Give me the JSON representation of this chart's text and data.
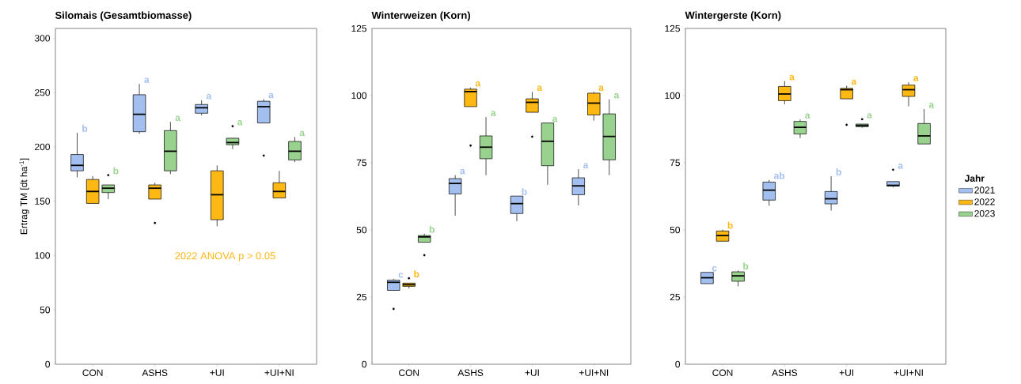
{
  "chart_data": [
    {
      "type": "box",
      "title": "Silomais (Gesamtbiomasse)",
      "ylabel": "Ertrag TM [dt ha$^{-1}$]",
      "categories": [
        "CON",
        "ASHS",
        "+UI",
        "+UI+NI"
      ],
      "ylim": [
        0,
        309
      ],
      "yticks": [
        0,
        50,
        100,
        150,
        200,
        250,
        300
      ],
      "grid": false,
      "annotations": [
        "2022 ANOVA p > 0.05"
      ],
      "series": [
        {
          "color": "#a3bff0",
          "value_labels": [
            "b",
            "a",
            "a",
            "a"
          ],
          "boxes": [
            {
              "low": 172,
              "q1": 178,
              "median": 183,
              "q3": 193,
              "high": 213
            },
            {
              "low": 212,
              "q1": 214,
              "median": 230,
              "q3": 248,
              "high": 258
            },
            {
              "low": 229,
              "q1": 231,
              "median": 236,
              "q3": 239,
              "high": 243
            },
            {
              "low": 222,
              "q1": 222,
              "median": 237,
              "q3": 242,
              "high": 244,
              "outliers": [
                192
              ]
            }
          ]
        },
        {
          "color": "#fdb813",
          "value_labels": [
            null,
            null,
            null,
            null
          ],
          "boxes": [
            {
              "low": 148,
              "q1": 148,
              "median": 159,
              "q3": 170,
              "high": 173
            },
            {
              "low": 152,
              "q1": 152,
              "median": 162,
              "q3": 165,
              "high": 167,
              "outliers": [
                130
              ]
            },
            {
              "low": 127,
              "q1": 133,
              "median": 156,
              "q3": 178,
              "high": 183
            },
            {
              "low": 153,
              "q1": 153,
              "median": 159,
              "q3": 167,
              "high": 178
            }
          ]
        },
        {
          "color": "#98d28e",
          "value_labels": [
            "b",
            "a",
            "a",
            "a"
          ],
          "boxes": [
            {
              "low": 152,
              "q1": 158,
              "median": 162,
              "q3": 165,
              "high": 165,
              "outliers": [
                174
              ]
            },
            {
              "low": 175,
              "q1": 178,
              "median": 196,
              "q3": 215,
              "high": 223
            },
            {
              "low": 198,
              "q1": 202,
              "median": 204,
              "q3": 208,
              "high": 208,
              "outliers": [
                219
              ]
            },
            {
              "low": 186,
              "q1": 188,
              "median": 196,
              "q3": 205,
              "high": 209
            }
          ]
        }
      ]
    },
    {
      "type": "box",
      "title": "Winterweizen (Korn)",
      "categories": [
        "CON",
        "ASHS",
        "+UI",
        "+UI+NI"
      ],
      "ylim": [
        0,
        125
      ],
      "yticks": [
        0,
        25,
        50,
        75,
        100,
        125
      ],
      "grid": false,
      "series": [
        {
          "color": "#a3bff0",
          "value_labels": [
            "c",
            "a",
            "b",
            "a"
          ],
          "boxes": [
            {
              "low": 27.5,
              "q1": 27.5,
              "median": 30.5,
              "q3": 31.3,
              "high": 31.8,
              "outliers": [
                20.6
              ]
            },
            {
              "low": 55.3,
              "q1": 63.4,
              "median": 67.3,
              "q3": 69.1,
              "high": 70.4
            },
            {
              "low": 53.2,
              "q1": 56.1,
              "median": 59.8,
              "q3": 62.6,
              "high": 62.6
            },
            {
              "low": 59.1,
              "q1": 63.1,
              "median": 66.4,
              "q3": 69.4,
              "high": 72.6
            }
          ]
        },
        {
          "color": "#fdb813",
          "value_labels": [
            "b",
            "a",
            "a",
            "a"
          ],
          "boxes": [
            {
              "low": 28.2,
              "q1": 29,
              "median": 29.6,
              "q3": 30.2,
              "high": 30.2,
              "outliers": [
                32
              ]
            },
            {
              "low": 95.9,
              "q1": 95.9,
              "median": 101.5,
              "q3": 102.4,
              "high": 103,
              "outliers": [
                81.4
              ]
            },
            {
              "low": 93.8,
              "q1": 93.8,
              "median": 97.5,
              "q3": 98.8,
              "high": 101.4,
              "outliers": [
                84.7
              ]
            },
            {
              "low": 90.7,
              "q1": 92.8,
              "median": 97.2,
              "q3": 100.9,
              "high": 101.4
            }
          ]
        },
        {
          "color": "#98d28e",
          "value_labels": [
            "b",
            "a",
            "a",
            "a"
          ],
          "boxes": [
            {
              "low": 45.4,
              "q1": 45.4,
              "median": 47.4,
              "q3": 47.9,
              "high": 48.6,
              "outliers": [
                40.6
              ]
            },
            {
              "low": 70.4,
              "q1": 76.5,
              "median": 80.8,
              "q3": 85,
              "high": 92
            },
            {
              "low": 66.8,
              "q1": 73.9,
              "median": 83,
              "q3": 89.8,
              "high": 89.8
            },
            {
              "low": 70.4,
              "q1": 76.1,
              "median": 84.8,
              "q3": 93.2,
              "high": 98.6
            }
          ]
        }
      ]
    },
    {
      "type": "box",
      "title": "Wintergerste (Korn)",
      "categories": [
        "CON",
        "ASHS",
        "+UI",
        "+UI+NI"
      ],
      "ylim": [
        0,
        125
      ],
      "yticks": [
        0,
        25,
        50,
        75,
        100,
        125
      ],
      "grid": false,
      "legend": "right",
      "legend_title": "Jahr",
      "series": [
        {
          "name": "2021",
          "color": "#a3bff0",
          "value_labels": [
            "c",
            "ab",
            "b",
            "a"
          ],
          "boxes": [
            {
              "low": 30,
              "q1": 30,
              "median": 32.2,
              "q3": 34.2,
              "high": 34.2
            },
            {
              "low": 59,
              "q1": 61.1,
              "median": 64.8,
              "q3": 67.8,
              "high": 68.6
            },
            {
              "low": 57.2,
              "q1": 59.7,
              "median": 61.6,
              "q3": 64.3,
              "high": 70
            },
            {
              "low": 65.8,
              "q1": 66.3,
              "median": 66.6,
              "q3": 68,
              "high": 68,
              "outliers": [
                72.4
              ]
            }
          ]
        },
        {
          "name": "2022",
          "color": "#fdb813",
          "value_labels": [
            "b",
            "a",
            "a",
            "a"
          ],
          "boxes": [
            {
              "low": 45.8,
              "q1": 45.8,
              "median": 47.9,
              "q3": 49.6,
              "high": 50.1
            },
            {
              "low": 96.8,
              "q1": 98.1,
              "median": 100.6,
              "q3": 103.4,
              "high": 105.4
            },
            {
              "low": 98.8,
              "q1": 98.8,
              "median": 102.2,
              "q3": 102.7,
              "high": 103.7,
              "outliers": [
                89.1
              ]
            },
            {
              "low": 96,
              "q1": 99.7,
              "median": 102.2,
              "q3": 103.9,
              "high": 105
            }
          ]
        },
        {
          "name": "2023",
          "color": "#98d28e",
          "value_labels": [
            "b",
            "a",
            "a",
            "a"
          ],
          "boxes": [
            {
              "low": 29,
              "q1": 30.9,
              "median": 32.9,
              "q3": 34.4,
              "high": 34.9
            },
            {
              "low": 84.2,
              "q1": 85.7,
              "median": 88.2,
              "q3": 90.4,
              "high": 91.1
            },
            {
              "low": 88,
              "q1": 88.4,
              "median": 88.9,
              "q3": 89.4,
              "high": 89.4,
              "outliers": [
                91.2
              ]
            },
            {
              "low": 82,
              "q1": 82,
              "median": 85,
              "q3": 89.6,
              "high": 95
            }
          ]
        }
      ]
    }
  ]
}
